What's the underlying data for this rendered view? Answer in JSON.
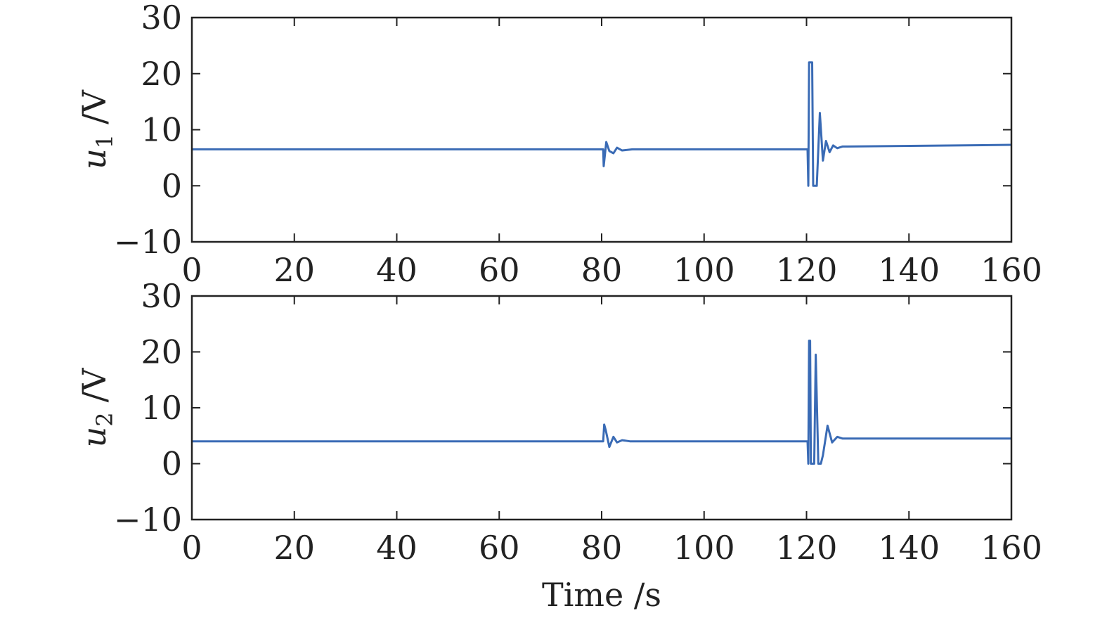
{
  "chart_data": [
    {
      "type": "line",
      "xlabel": "",
      "ylabel": "/V",
      "ylabel_symbol": "u",
      "ylabel_subscript": "1",
      "xlim": [
        0,
        160
      ],
      "ylim": [
        -10,
        30
      ],
      "xticks": [
        0,
        20,
        40,
        60,
        80,
        100,
        120,
        140,
        160
      ],
      "yticks": [
        -10,
        0,
        10,
        20,
        30
      ],
      "xtick_labels": [
        "0",
        "20",
        "40",
        "60",
        "80",
        "100",
        "120",
        "140",
        "160"
      ],
      "ytick_labels": [
        "−10",
        "0",
        "10",
        "20",
        "30"
      ],
      "grid": false,
      "color": "#3a6bb5",
      "series": [
        {
          "x": [
            0,
            80,
            80.3,
            80.4,
            80.9,
            81.5,
            82.3,
            83.0,
            84.0,
            86.0,
            90,
            120,
            120.2,
            120.35,
            120.5,
            121.1,
            121.3,
            121.8,
            122.0,
            122.6,
            123.2,
            123.8,
            124.5,
            125.2,
            126.0,
            127.0,
            128.0,
            160
          ],
          "y": [
            6.5,
            6.5,
            6.5,
            3.5,
            7.8,
            6.2,
            5.8,
            6.8,
            6.3,
            6.5,
            6.5,
            6.5,
            6.5,
            0,
            22,
            22,
            0,
            0,
            0,
            13,
            4.5,
            8.0,
            6.0,
            7.2,
            6.7,
            7.0,
            7.0,
            7.3
          ]
        }
      ]
    },
    {
      "type": "line",
      "xlabel": "Time /s",
      "ylabel": "/V",
      "ylabel_symbol": "u",
      "ylabel_subscript": "2",
      "xlim": [
        0,
        160
      ],
      "ylim": [
        -10,
        30
      ],
      "xticks": [
        0,
        20,
        40,
        60,
        80,
        100,
        120,
        140,
        160
      ],
      "yticks": [
        -10,
        0,
        10,
        20,
        30
      ],
      "xtick_labels": [
        "0",
        "20",
        "40",
        "60",
        "80",
        "100",
        "120",
        "140",
        "160"
      ],
      "ytick_labels": [
        "−10",
        "0",
        "10",
        "20",
        "30"
      ],
      "grid": false,
      "color": "#3a6bb5",
      "series": [
        {
          "x": [
            0,
            80,
            80.3,
            80.5,
            80.8,
            81.5,
            82.3,
            83.0,
            84.0,
            85.5,
            90,
            120,
            120.2,
            120.35,
            120.5,
            120.7,
            120.85,
            121.2,
            121.5,
            121.8,
            122.3,
            122.8,
            123.2,
            124.1,
            125.0,
            126.0,
            127.0,
            160
          ],
          "y": [
            4,
            4,
            4,
            7,
            6,
            3,
            4.8,
            3.8,
            4.2,
            4,
            4,
            4,
            4,
            0,
            22,
            22,
            0,
            0,
            0,
            19.5,
            0,
            0,
            1.5,
            6.8,
            3.8,
            4.8,
            4.5,
            4.5
          ]
        }
      ]
    }
  ]
}
